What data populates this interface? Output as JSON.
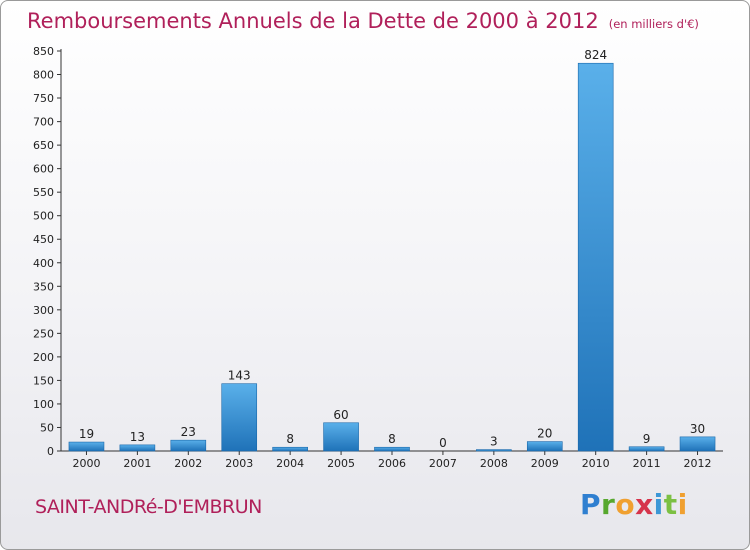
{
  "title": "Remboursements Annuels de la Dette de 2000 à 2012",
  "unit": "(en milliers d'€)",
  "commune": "SAINT-ANDRé-D'EMBRUN",
  "logo": {
    "text": "Proxiti",
    "colors": [
      "#2f7fd0",
      "#57a82e",
      "#f0a030",
      "#d6344b",
      "#3c97d6",
      "#7cc043",
      "#f0a030"
    ]
  },
  "colors": {
    "bar_top": "#5ab0ea",
    "bar_bottom": "#1f72b8",
    "title": "#b0205a"
  },
  "chart_data": {
    "type": "bar",
    "categories": [
      "2000",
      "2001",
      "2002",
      "2003",
      "2004",
      "2005",
      "2006",
      "2007",
      "2008",
      "2009",
      "2010",
      "2011",
      "2012"
    ],
    "values": [
      19,
      13,
      23,
      143,
      8,
      60,
      8,
      0,
      3,
      20,
      824,
      9,
      30
    ],
    "ylim": [
      0,
      850
    ],
    "yticks": [
      0,
      50,
      100,
      150,
      200,
      250,
      300,
      350,
      400,
      450,
      500,
      550,
      600,
      650,
      700,
      750,
      800,
      850
    ],
    "grid": false
  }
}
